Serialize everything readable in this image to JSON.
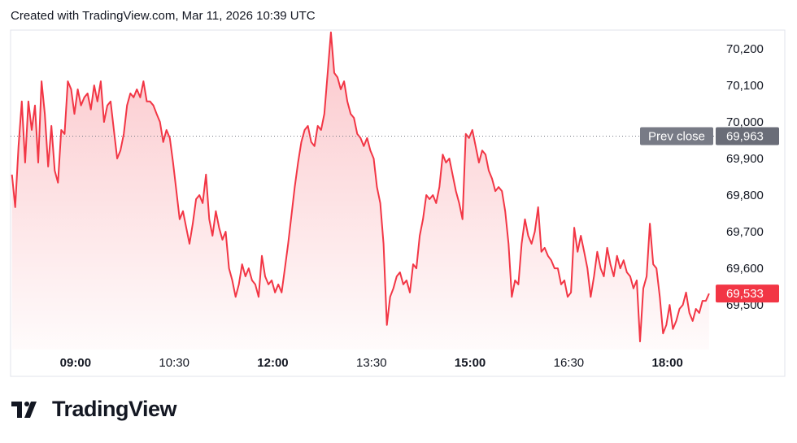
{
  "chart_data": {
    "type": "line",
    "title": "Created with TradingView.com, Mar 11, 2026 10:39 UTC",
    "brand": "TradingView",
    "color": "#f23645",
    "x": [
      "08:02",
      "08:05",
      "08:08",
      "08:11",
      "08:14",
      "08:17",
      "08:20",
      "08:23",
      "08:26",
      "08:29",
      "08:32",
      "08:35",
      "08:38",
      "08:41",
      "08:44",
      "08:47",
      "08:50",
      "08:53",
      "08:56",
      "08:59",
      "09:02",
      "09:05",
      "09:08",
      "09:11",
      "09:14",
      "09:17",
      "09:20",
      "09:23",
      "09:26",
      "09:29",
      "09:32",
      "09:35",
      "09:38",
      "09:41",
      "09:44",
      "09:47",
      "09:50",
      "09:53",
      "09:56",
      "09:59",
      "10:02",
      "10:05",
      "10:08",
      "10:11",
      "10:14",
      "10:17",
      "10:20",
      "10:23",
      "10:26",
      "10:29",
      "10:32",
      "10:35",
      "10:38",
      "10:41",
      "10:44",
      "10:47",
      "10:50",
      "10:53",
      "10:56",
      "10:59",
      "11:02",
      "11:05",
      "11:08",
      "11:11",
      "11:14",
      "11:17",
      "11:20",
      "11:23",
      "11:26",
      "11:29",
      "11:32",
      "11:35",
      "11:38",
      "11:41",
      "11:44",
      "11:47",
      "11:50",
      "11:53",
      "11:56",
      "11:59",
      "12:02",
      "12:05",
      "12:08",
      "12:11",
      "12:14",
      "12:17",
      "12:20",
      "12:23",
      "12:26",
      "12:29",
      "12:32",
      "12:35",
      "12:38",
      "12:41",
      "12:44",
      "12:47",
      "12:50",
      "12:53",
      "12:56",
      "12:59",
      "13:02",
      "13:05",
      "13:08",
      "13:11",
      "13:14",
      "13:17",
      "13:20",
      "13:23",
      "13:26",
      "13:29",
      "13:32",
      "13:35",
      "13:38",
      "13:41",
      "13:44",
      "13:47",
      "13:50",
      "13:53",
      "13:56",
      "13:59",
      "14:02",
      "14:05",
      "14:08",
      "14:11",
      "14:14",
      "14:17",
      "14:20",
      "14:23",
      "14:26",
      "14:29",
      "14:32",
      "14:35",
      "14:38",
      "14:41",
      "14:44",
      "14:47",
      "14:50",
      "14:53",
      "14:56",
      "14:59",
      "15:02",
      "15:05",
      "15:08",
      "15:11",
      "15:14",
      "15:17",
      "15:20",
      "15:23",
      "15:26",
      "15:29",
      "15:32",
      "15:35",
      "15:38",
      "15:41",
      "15:44",
      "15:47",
      "15:50",
      "15:53",
      "15:56",
      "15:59",
      "16:02",
      "16:05",
      "16:08",
      "16:11",
      "16:14",
      "16:17",
      "16:20",
      "16:23",
      "16:26",
      "16:29",
      "16:32",
      "16:35",
      "16:38",
      "16:41",
      "16:44",
      "16:47",
      "16:50",
      "16:53",
      "16:56",
      "16:59",
      "17:02",
      "17:05",
      "17:08",
      "17:11",
      "17:14",
      "17:17",
      "17:20",
      "17:23",
      "17:26",
      "17:29",
      "17:32",
      "17:35",
      "17:38",
      "17:41",
      "17:44",
      "17:47",
      "17:50",
      "17:53",
      "17:56",
      "17:59",
      "18:02",
      "18:05",
      "18:08",
      "18:11",
      "18:14",
      "18:17",
      "18:20",
      "18:23",
      "18:26",
      "18:29",
      "18:32",
      "18:35",
      "18:38"
    ],
    "values": [
      69858,
      69769,
      69936,
      70058,
      69891,
      70058,
      69980,
      70047,
      69891,
      70113,
      70024,
      69880,
      69991,
      69869,
      69836,
      69980,
      69969,
      70113,
      70091,
      70024,
      70091,
      70047,
      70069,
      70080,
      70036,
      70102,
      70058,
      70113,
      70002,
      70047,
      70058,
      69980,
      69902,
      69924,
      69969,
      70047,
      70080,
      70069,
      70091,
      70069,
      70113,
      70058,
      70058,
      70047,
      70024,
      70002,
      69947,
      69980,
      69958,
      69891,
      69813,
      69736,
      69758,
      69713,
      69669,
      69725,
      69791,
      69802,
      69780,
      69858,
      69736,
      69691,
      69758,
      69713,
      69680,
      69702,
      69602,
      69569,
      69524,
      69558,
      69613,
      69580,
      69602,
      69569,
      69558,
      69524,
      69636,
      69580,
      69558,
      69569,
      69536,
      69558,
      69536,
      69602,
      69669,
      69747,
      69824,
      69891,
      69947,
      69980,
      69991,
      69947,
      69936,
      69991,
      69980,
      70024,
      70136,
      70247,
      70136,
      70124,
      70091,
      70113,
      70058,
      70024,
      70013,
      69969,
      69958,
      69936,
      69958,
      69924,
      69902,
      69824,
      69780,
      69669,
      69447,
      69524,
      69547,
      69580,
      69591,
      69558,
      69569,
      69536,
      69613,
      69602,
      69691,
      69736,
      69802,
      69791,
      69802,
      69780,
      69824,
      69913,
      69891,
      69902,
      69858,
      69813,
      69780,
      69736,
      69969,
      69958,
      69980,
      69936,
      69891,
      69924,
      69913,
      69869,
      69847,
      69813,
      69824,
      69813,
      69758,
      69669,
      69524,
      69569,
      69558,
      69669,
      69736,
      69691,
      69669,
      69702,
      69769,
      69647,
      69658,
      69636,
      69624,
      69602,
      69602,
      69558,
      69569,
      69524,
      69536,
      69713,
      69647,
      69691,
      69647,
      69602,
      69524,
      69580,
      69647,
      69602,
      69580,
      69658,
      69613,
      69580,
      69636,
      69602,
      69624,
      69591,
      69580,
      69547,
      69569,
      69402,
      69547,
      69580,
      69724,
      69613,
      69602,
      69524,
      69424,
      69447,
      69502,
      69436,
      69458,
      69491,
      69502,
      69536,
      69480,
      69458,
      69491,
      69480,
      69513,
      69513,
      69533
    ],
    "last_value_label": "69,533",
    "prev_close": {
      "label": "Prev close",
      "value": 69963,
      "value_label": "69,963"
    },
    "xlim": [
      "08:00",
      "18:44"
    ],
    "xticks": [
      "09:00",
      "10:30",
      "12:00",
      "13:30",
      "15:00",
      "16:30",
      "18:00"
    ],
    "ylim": [
      69380,
      70253
    ],
    "yticks": [
      {
        "value": 69500,
        "label": "69,500"
      },
      {
        "value": 69600,
        "label": "69,600"
      },
      {
        "value": 69700,
        "label": "69,700"
      },
      {
        "value": 69800,
        "label": "69,800"
      },
      {
        "value": 69900,
        "label": "69,900"
      },
      {
        "value": 70000,
        "label": "70,000"
      },
      {
        "value": 70100,
        "label": "70,100"
      },
      {
        "value": 70200,
        "label": "70,200"
      }
    ],
    "grid": false
  }
}
